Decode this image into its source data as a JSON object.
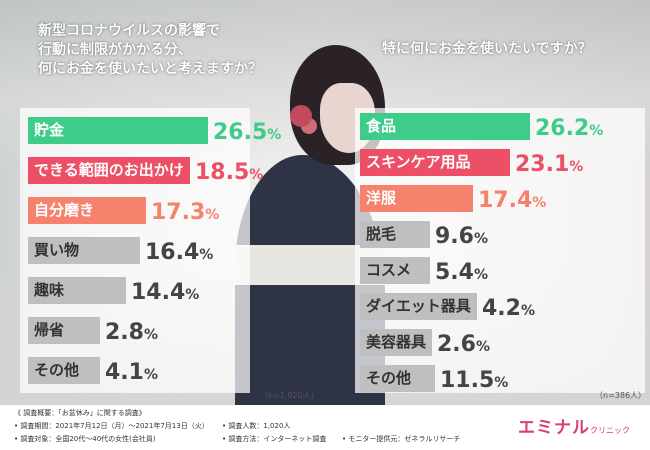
{
  "questions": {
    "left": "新型コロナウイルスの影響で\n行動に制限がかかる分、\n何にお金を使いたいと考えますか？",
    "right": "特に何にお金を使いたいですか？"
  },
  "chart_data": [
    {
      "type": "bar",
      "orientation": "horizontal",
      "title": "新型コロナウイルスの影響で行動に制限がかかる分、何にお金を使いたいと考えますか？",
      "unit": "%",
      "categories": [
        "貯金",
        "できる範囲のお出かけ",
        "自分磨き",
        "買い物",
        "趣味",
        "帰省",
        "その他"
      ],
      "values": [
        26.5,
        18.5,
        17.3,
        16.4,
        14.4,
        2.8,
        4.1
      ],
      "value_labels": [
        "26.5",
        "18.5",
        "17.3",
        "16.4",
        "14.4",
        "2.8",
        "4.1"
      ],
      "colors": [
        "#3dcc8a",
        "#ec4f66",
        "#f5826d",
        "#bfbfbf",
        "#bfbfbf",
        "#bfbfbf",
        "#bfbfbf"
      ],
      "sample_note": "（n=1,020人）"
    },
    {
      "type": "bar",
      "orientation": "horizontal",
      "title": "特に何にお金を使いたいですか？",
      "unit": "%",
      "categories": [
        "食品",
        "スキンケア用品",
        "洋服",
        "脱毛",
        "コスメ",
        "ダイエット器具",
        "美容器具",
        "その他"
      ],
      "values": [
        26.2,
        23.1,
        17.4,
        9.6,
        5.4,
        4.2,
        2.6,
        11.5
      ],
      "value_labels": [
        "26.2",
        "23.1",
        "17.4",
        "9.6",
        "5.4",
        "4.2",
        "2.6",
        "11.5"
      ],
      "colors": [
        "#3dcc8a",
        "#ec4f66",
        "#f5826d",
        "#bfbfbf",
        "#bfbfbf",
        "#bfbfbf",
        "#bfbfbf",
        "#bfbfbf"
      ],
      "sample_note": "（n=386人）"
    }
  ],
  "footer": {
    "heading": "《 調査概要：「お盆休み」に関する調査》",
    "period": "• 調査期間：2021年7月12日（月）～2021年7月13日（火）",
    "respondents": "• 調査人数：1,020人",
    "target": "• 調査対象：全国20代～40代の女性(会社員)",
    "method": "• 調査方法：インターネット調査",
    "provider": "• モニター提供元：ゼネラルリサーチ"
  },
  "brand": {
    "name": "エミナル",
    "sub": "クリニック"
  }
}
